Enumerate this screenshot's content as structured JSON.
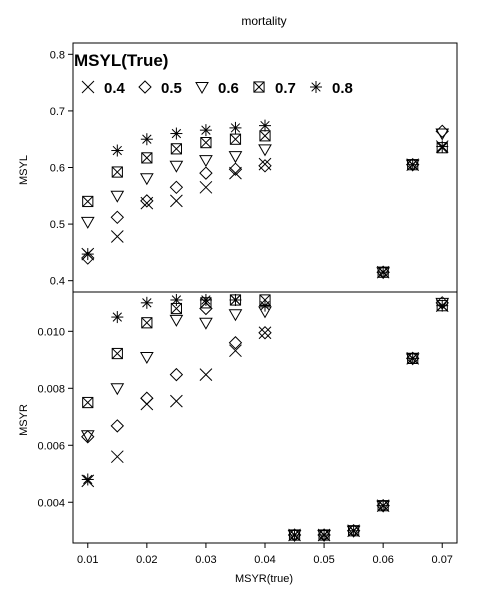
{
  "chart_data": [
    {
      "type": "scatter",
      "title": "mortality",
      "xlabel": "",
      "ylabel": "MSYL",
      "xlim": [
        0.0075,
        0.0725
      ],
      "ylim": [
        0.38,
        0.82
      ],
      "xticks": [
        "0.01",
        "0.02",
        "0.03",
        "0.04",
        "0.05",
        "0.06",
        "0.07"
      ],
      "yticks": [
        "0.4",
        "0.5",
        "0.6",
        "0.7",
        "0.8"
      ],
      "yticks_values": [
        0.4,
        0.5,
        0.6,
        0.7,
        0.8
      ],
      "legend": {
        "title": "MSYL(True)",
        "placement": "top-left",
        "entries": [
          "0.4",
          "0.5",
          "0.6",
          "0.7",
          "0.8"
        ]
      },
      "series": [
        {
          "name": "0.4",
          "marker": "x",
          "points": [
            [
              0.01,
              0.447
            ],
            [
              0.015,
              0.478
            ],
            [
              0.02,
              0.537
            ],
            [
              0.025,
              0.541
            ],
            [
              0.03,
              0.565
            ],
            [
              0.035,
              0.59
            ],
            [
              0.04,
              0.606
            ],
            [
              0.06,
              0.415
            ],
            [
              0.065,
              0.605
            ],
            [
              0.07,
              0.637
            ]
          ]
        },
        {
          "name": "0.5",
          "marker": "diamond",
          "points": [
            [
              0.01,
              0.44
            ],
            [
              0.015,
              0.512
            ],
            [
              0.02,
              0.541
            ],
            [
              0.025,
              0.565
            ],
            [
              0.03,
              0.59
            ],
            [
              0.035,
              0.597
            ],
            [
              0.04,
              0.603
            ],
            [
              0.06,
              0.415
            ],
            [
              0.065,
              0.605
            ],
            [
              0.07,
              0.664
            ]
          ]
        },
        {
          "name": "0.6",
          "marker": "triangle-down",
          "points": [
            [
              0.01,
              0.504
            ],
            [
              0.015,
              0.55
            ],
            [
              0.02,
              0.581
            ],
            [
              0.025,
              0.603
            ],
            [
              0.03,
              0.613
            ],
            [
              0.035,
              0.62
            ],
            [
              0.04,
              0.632
            ],
            [
              0.06,
              0.415
            ],
            [
              0.065,
              0.605
            ],
            [
              0.07,
              0.66
            ]
          ]
        },
        {
          "name": "0.7",
          "marker": "boxed-x",
          "points": [
            [
              0.01,
              0.54
            ],
            [
              0.015,
              0.592
            ],
            [
              0.02,
              0.617
            ],
            [
              0.025,
              0.633
            ],
            [
              0.03,
              0.644
            ],
            [
              0.035,
              0.65
            ],
            [
              0.04,
              0.656
            ],
            [
              0.06,
              0.415
            ],
            [
              0.065,
              0.605
            ],
            [
              0.07,
              0.635
            ]
          ]
        },
        {
          "name": "0.8",
          "marker": "asterisk",
          "points": [
            [
              0.01,
              0.447
            ],
            [
              0.015,
              0.63
            ],
            [
              0.02,
              0.65
            ],
            [
              0.025,
              0.66
            ],
            [
              0.03,
              0.666
            ],
            [
              0.035,
              0.67
            ],
            [
              0.04,
              0.674
            ],
            [
              0.06,
              0.415
            ],
            [
              0.065,
              0.605
            ],
            [
              0.07,
              0.637
            ]
          ]
        }
      ]
    },
    {
      "type": "scatter",
      "title": "",
      "xlabel": "MSYR(true)",
      "ylabel": "MSYR",
      "xlim": [
        0.0075,
        0.0725
      ],
      "ylim": [
        0.00257,
        0.01138
      ],
      "xticks": [
        "0.01",
        "0.02",
        "0.03",
        "0.04",
        "0.05",
        "0.06",
        "0.07"
      ],
      "yticks": [
        "0.004",
        "0.006",
        "0.008",
        "0.010"
      ],
      "yticks_values": [
        0.004,
        0.006,
        0.008,
        0.01
      ],
      "series": [
        {
          "name": "0.4",
          "marker": "x",
          "points": [
            [
              0.01,
              0.00475
            ],
            [
              0.015,
              0.0056
            ],
            [
              0.02,
              0.00745
            ],
            [
              0.025,
              0.00755
            ],
            [
              0.03,
              0.00848
            ],
            [
              0.035,
              0.00932
            ],
            [
              0.04,
              0.00995
            ],
            [
              0.045,
              0.00285
            ],
            [
              0.05,
              0.00285
            ],
            [
              0.055,
              0.003
            ],
            [
              0.06,
              0.00388
            ],
            [
              0.065,
              0.00905
            ],
            [
              0.07,
              0.0109
            ]
          ]
        },
        {
          "name": "0.5",
          "marker": "diamond",
          "points": [
            [
              0.01,
              0.0063
            ],
            [
              0.015,
              0.00668
            ],
            [
              0.02,
              0.00765
            ],
            [
              0.025,
              0.00848
            ],
            [
              0.03,
              0.0108
            ],
            [
              0.035,
              0.0096
            ],
            [
              0.04,
              0.00995
            ],
            [
              0.045,
              0.00285
            ],
            [
              0.05,
              0.00285
            ],
            [
              0.055,
              0.003
            ],
            [
              0.06,
              0.00388
            ],
            [
              0.065,
              0.00905
            ],
            [
              0.07,
              0.011
            ]
          ]
        },
        {
          "name": "0.6",
          "marker": "triangle-down",
          "points": [
            [
              0.01,
              0.00635
            ],
            [
              0.015,
              0.008
            ],
            [
              0.02,
              0.0091
            ],
            [
              0.025,
              0.0104
            ],
            [
              0.03,
              0.0103
            ],
            [
              0.035,
              0.0106
            ],
            [
              0.04,
              0.0107
            ],
            [
              0.045,
              0.00285
            ],
            [
              0.05,
              0.00285
            ],
            [
              0.055,
              0.003
            ],
            [
              0.06,
              0.00388
            ],
            [
              0.065,
              0.00905
            ],
            [
              0.07,
              0.011
            ]
          ]
        },
        {
          "name": "0.7",
          "marker": "boxed-x",
          "points": [
            [
              0.01,
              0.0075
            ],
            [
              0.015,
              0.00922
            ],
            [
              0.02,
              0.0103
            ],
            [
              0.025,
              0.0108
            ],
            [
              0.03,
              0.011
            ],
            [
              0.035,
              0.0111
            ],
            [
              0.04,
              0.0111
            ],
            [
              0.045,
              0.00285
            ],
            [
              0.05,
              0.00285
            ],
            [
              0.055,
              0.003
            ],
            [
              0.06,
              0.00388
            ],
            [
              0.065,
              0.00905
            ],
            [
              0.07,
              0.0109
            ]
          ]
        },
        {
          "name": "0.8",
          "marker": "asterisk",
          "points": [
            [
              0.01,
              0.0048
            ],
            [
              0.015,
              0.0105
            ],
            [
              0.02,
              0.011
            ],
            [
              0.025,
              0.0111
            ],
            [
              0.03,
              0.0111
            ],
            [
              0.035,
              0.0111
            ],
            [
              0.04,
              0.0109
            ],
            [
              0.045,
              0.00285
            ],
            [
              0.05,
              0.00285
            ],
            [
              0.055,
              0.003
            ],
            [
              0.06,
              0.00388
            ],
            [
              0.065,
              0.00905
            ],
            [
              0.07,
              0.0109
            ]
          ]
        }
      ]
    }
  ]
}
